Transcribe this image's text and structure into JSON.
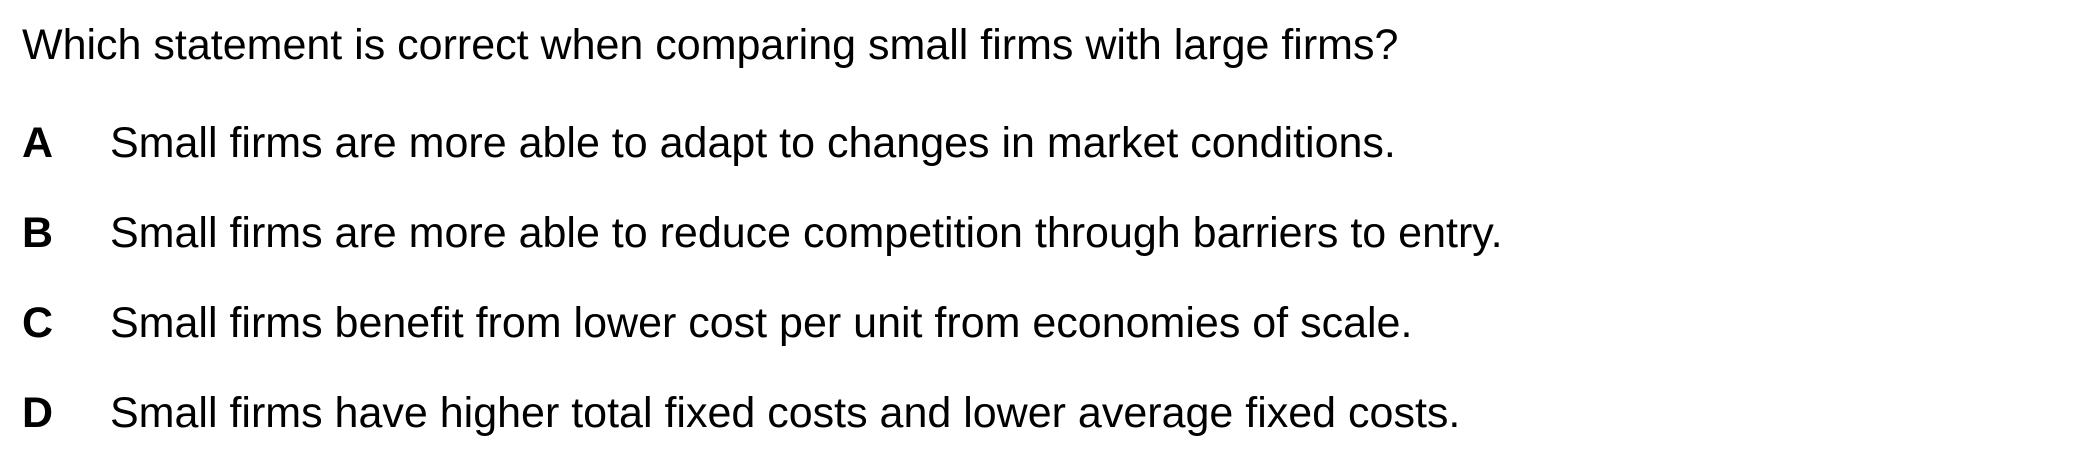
{
  "question": "Which statement is correct when comparing small firms with large firms?",
  "options": [
    {
      "letter": "A",
      "text": "Small firms are more able to adapt to changes in market conditions."
    },
    {
      "letter": "B",
      "text": "Small firms are more able to reduce competition through barriers to entry."
    },
    {
      "letter": "C",
      "text": "Small firms benefit from lower cost per unit from economies of scale."
    },
    {
      "letter": "D",
      "text": "Small firms have higher total fixed costs and lower average fixed costs."
    }
  ]
}
